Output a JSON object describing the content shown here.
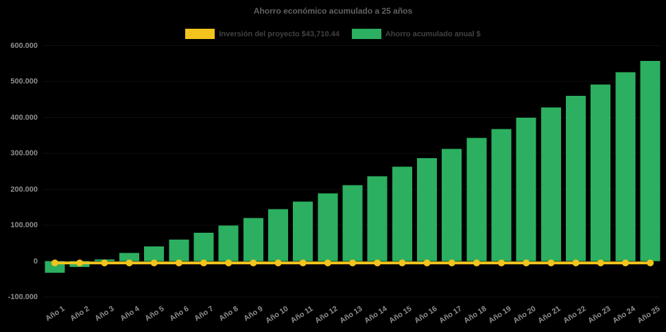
{
  "title": "Ahorro económico acumulado a 25 años",
  "colors": {
    "background": "#000000",
    "bar_green": "#2caf60",
    "line_yellow": "#f2c41d",
    "title_text": "#616161",
    "legend_text": "#424242",
    "tick_text": "#8f8f8f",
    "gridline": "rgba(255,255,255,0.06)"
  },
  "legend": {
    "items": [
      {
        "label": "Inversión del proyecto $43,710.44",
        "color": "#f2c41d"
      },
      {
        "label": "Ahorro acumulado anual $",
        "color": "#2caf60"
      }
    ]
  },
  "chart_data": {
    "type": "bar",
    "title": "Ahorro económico acumulado a 25 años",
    "xlabel": "",
    "ylabel": "",
    "ylim": [
      -100000,
      600000
    ],
    "grid": "faint horizontal gridlines",
    "legend_position": "top-center",
    "x_label_rotation": -33,
    "background": "#000000",
    "categories": [
      "Año 1",
      "Año 2",
      "Año 3",
      "Año 4",
      "Año 5",
      "Año 6",
      "Año 7",
      "Año 8",
      "Año 9",
      "Año 10",
      "Año 11",
      "Año 12",
      "Año 13",
      "Año 14",
      "Año 15",
      "Año 16",
      "Año 17",
      "Año 18",
      "Año 19",
      "Año 20",
      "Año 21",
      "Año 22",
      "Año 23",
      "Año 24",
      "Año 25"
    ],
    "y_ticks": {
      "labels": [
        "600.000",
        "500.000",
        "400.000",
        "300.000",
        "200.000",
        "100.000",
        "0",
        "-100.000"
      ],
      "values": [
        600000,
        500000,
        400000,
        300000,
        200000,
        100000,
        0,
        -100000
      ]
    },
    "series": [
      {
        "name": "Ahorro acumulado anual $",
        "type": "bar",
        "color": "#2caf60",
        "values": [
          -32000,
          -16000,
          5000,
          23000,
          41000,
          60000,
          79000,
          99000,
          120000,
          145000,
          166000,
          189000,
          211000,
          236000,
          263000,
          287000,
          312000,
          343000,
          368000,
          399000,
          428000,
          460000,
          491000,
          526000,
          557000
        ]
      },
      {
        "name": "Inversión del proyecto $43,710.44",
        "type": "line",
        "color": "#f2c41d",
        "marker": "circle",
        "values": [
          -5000,
          -5000,
          -5000,
          -5000,
          -5000,
          -5000,
          -5000,
          -5000,
          -5000,
          -5000,
          -5000,
          -5000,
          -5000,
          -5000,
          -5000,
          -5000,
          -5000,
          -5000,
          -5000,
          -5000,
          -5000,
          -5000,
          -5000,
          -5000,
          -5000
        ]
      }
    ]
  }
}
